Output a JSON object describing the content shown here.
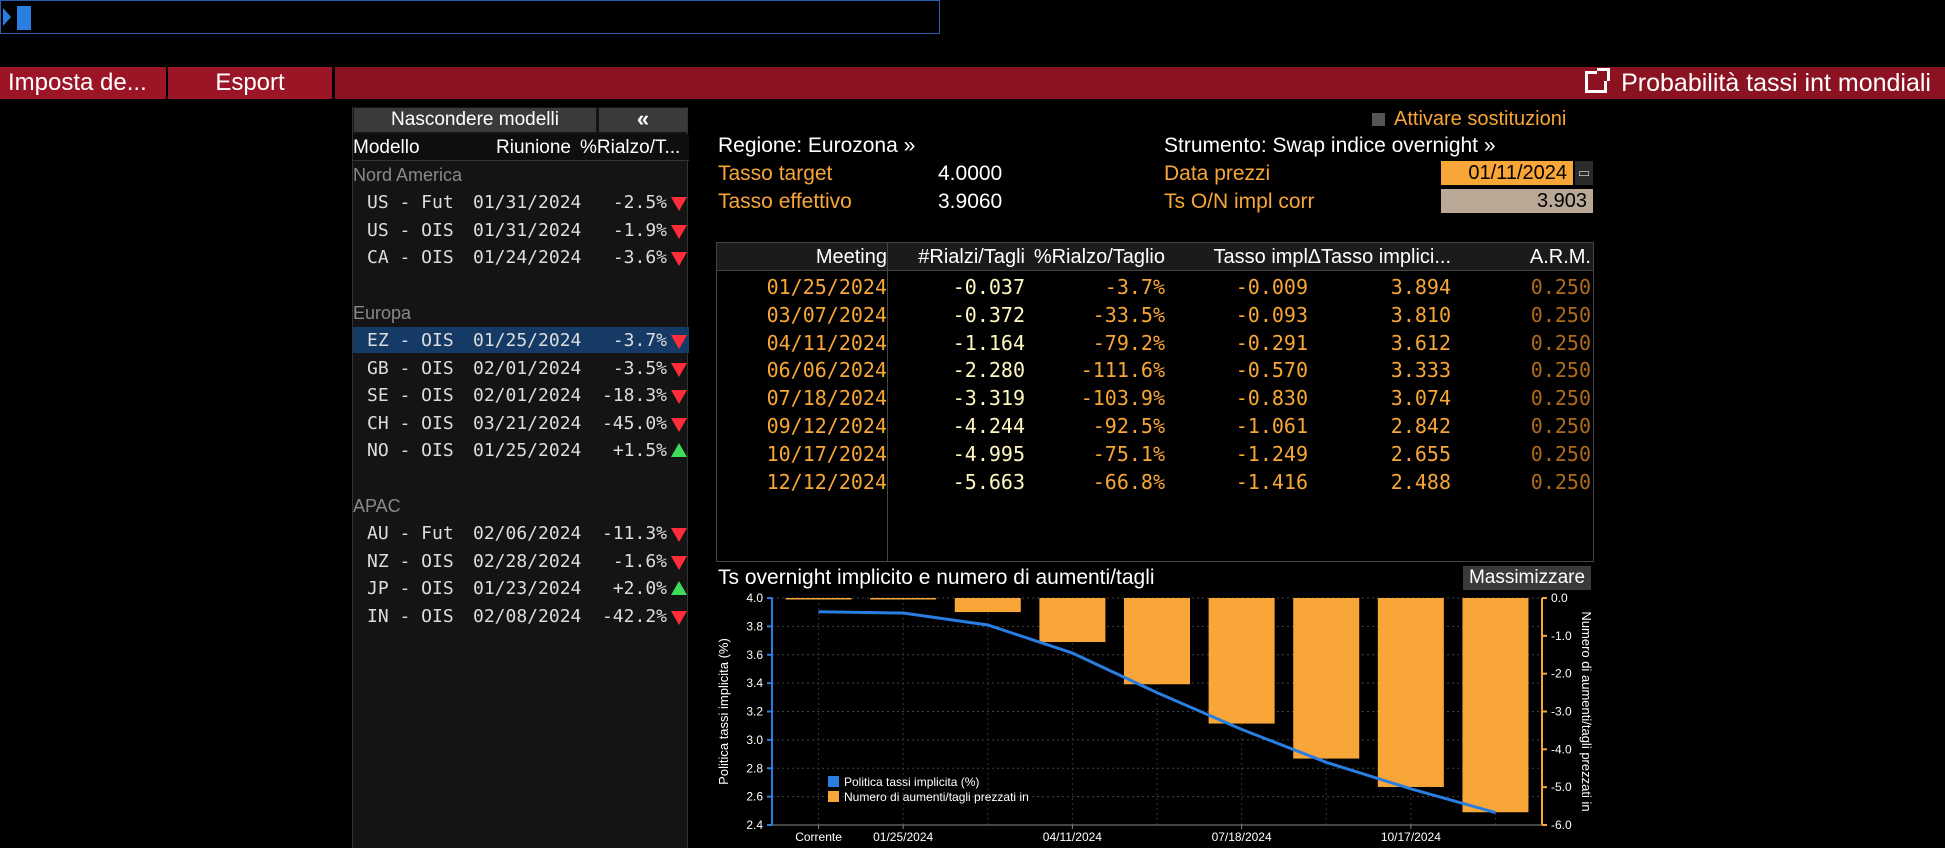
{
  "toolbar": {
    "settings_label": "Imposta de...",
    "export_label": "Esport",
    "title": "Probabilità tassi int mondiali"
  },
  "left_panel": {
    "hide_models_label": "Nascondere modelli",
    "collapse_label": "«",
    "columns": [
      "Modello",
      "Riunione",
      "%Rialzo/T..."
    ],
    "groups": [
      {
        "name": "Nord America",
        "rows": [
          {
            "model": "US - Fut",
            "date": "01/31/2024",
            "pct": "-2.5%",
            "dir": "down"
          },
          {
            "model": "US - OIS",
            "date": "01/31/2024",
            "pct": "-1.9%",
            "dir": "down"
          },
          {
            "model": "CA - OIS",
            "date": "01/24/2024",
            "pct": "-3.6%",
            "dir": "down"
          }
        ]
      },
      {
        "name": "Europa",
        "rows": [
          {
            "model": "EZ - OIS",
            "date": "01/25/2024",
            "pct": "-3.7%",
            "dir": "down",
            "selected": true
          },
          {
            "model": "GB - OIS",
            "date": "02/01/2024",
            "pct": "-3.5%",
            "dir": "down"
          },
          {
            "model": "SE - OIS",
            "date": "02/01/2024",
            "pct": "-18.3%",
            "dir": "down"
          },
          {
            "model": "CH - OIS",
            "date": "03/21/2024",
            "pct": "-45.0%",
            "dir": "down"
          },
          {
            "model": "NO - OIS",
            "date": "01/25/2024",
            "pct": "+1.5%",
            "dir": "up"
          }
        ]
      },
      {
        "name": "APAC",
        "rows": [
          {
            "model": "AU - Fut",
            "date": "02/06/2024",
            "pct": "-11.3%",
            "dir": "down"
          },
          {
            "model": "NZ - OIS",
            "date": "02/28/2024",
            "pct": "-1.6%",
            "dir": "down"
          },
          {
            "model": "JP - OIS",
            "date": "01/23/2024",
            "pct": "+2.0%",
            "dir": "up"
          },
          {
            "model": "IN - OIS",
            "date": "02/08/2024",
            "pct": "-42.2%",
            "dir": "down"
          }
        ]
      }
    ]
  },
  "info": {
    "override_label": "Attivare sostituzioni",
    "region": "Regione: Eurozona »",
    "instrument": "Strumento: Swap indice overnight »",
    "target_label": "Tasso target",
    "target_value": "4.0000",
    "effective_label": "Tasso effettivo",
    "effective_value": "3.9060",
    "price_date_label": "Data prezzi",
    "price_date_value": "01/11/2024",
    "ts_label": "Ts O/N impl corr",
    "ts_value": "3.903"
  },
  "meetings": {
    "columns": [
      "Meeting",
      "#Rialzi/Tagli",
      "%Rialzo/Taglio",
      "Tasso impl",
      "ΔTasso implici...",
      "A.R.M."
    ],
    "rows": [
      [
        "01/25/2024",
        "-0.037",
        "-3.7%",
        "-0.009",
        "3.894",
        "0.250"
      ],
      [
        "03/07/2024",
        "-0.372",
        "-33.5%",
        "-0.093",
        "3.810",
        "0.250"
      ],
      [
        "04/11/2024",
        "-1.164",
        "-79.2%",
        "-0.291",
        "3.612",
        "0.250"
      ],
      [
        "06/06/2024",
        "-2.280",
        "-111.6%",
        "-0.570",
        "3.333",
        "0.250"
      ],
      [
        "07/18/2024",
        "-3.319",
        "-103.9%",
        "-0.830",
        "3.074",
        "0.250"
      ],
      [
        "09/12/2024",
        "-4.244",
        "-92.5%",
        "-1.061",
        "2.842",
        "0.250"
      ],
      [
        "10/17/2024",
        "-4.995",
        "-75.1%",
        "-1.249",
        "2.655",
        "0.250"
      ],
      [
        "12/12/2024",
        "-5.663",
        "-66.8%",
        "-1.416",
        "2.488",
        "0.250"
      ]
    ]
  },
  "chart": {
    "title": "Ts overnight implicito e numero di aumenti/tagli",
    "maximize_label": "Massimizzare"
  },
  "chart_data": {
    "type": "bar",
    "title": "Ts overnight implicito e numero di aumenti/tagli",
    "ylabel": "Politica tassi implicita (%)",
    "y2label": "Numero di aumenti/tagli prezzati in",
    "ylim": [
      2.4,
      4.0
    ],
    "y2lim": [
      -6.0,
      0.0
    ],
    "y_ticks": [
      "2.4",
      "2.6",
      "2.8",
      "3.0",
      "3.2",
      "3.4",
      "3.6",
      "3.8",
      "4.0"
    ],
    "y2_ticks": [
      "-6.0",
      "-5.0",
      "-4.0",
      "-3.0",
      "-2.0",
      "-1.0",
      "0.0"
    ],
    "x_tick_labels": [
      "Corrente",
      "01/25/2024",
      "04/11/2024",
      "07/18/2024",
      "10/17/2024"
    ],
    "categories": [
      "Corrente",
      "01/25/2024",
      "03/07/2024",
      "04/11/2024",
      "06/06/2024",
      "07/18/2024",
      "09/12/2024",
      "10/17/2024",
      "12/12/2024"
    ],
    "series": [
      {
        "name": "Politica tassi implicita (%)",
        "type": "line",
        "color": "#2a7de1",
        "values": [
          3.903,
          3.894,
          3.81,
          3.612,
          3.333,
          3.074,
          2.842,
          2.655,
          2.488
        ]
      },
      {
        "name": "Numero di aumenti/tagli prezzati in",
        "type": "bar",
        "color": "#f7a637",
        "values": [
          0.0,
          -0.037,
          -0.372,
          -1.164,
          -2.28,
          -3.319,
          -4.244,
          -4.995,
          -5.663
        ]
      }
    ],
    "legend": "bottom-left",
    "grid": true
  }
}
